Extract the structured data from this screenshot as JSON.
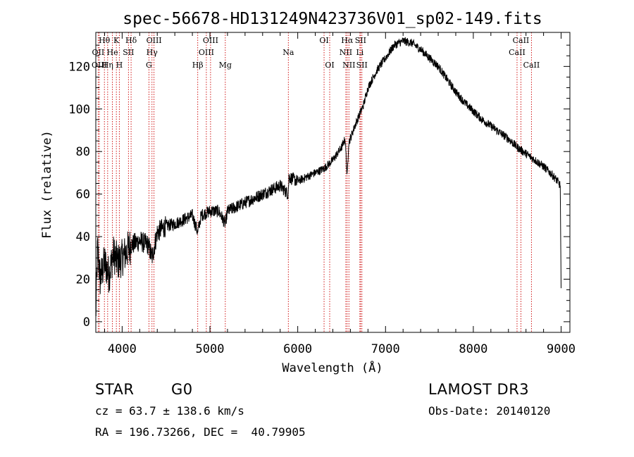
{
  "chart_data": {
    "type": "line",
    "title": "spec-56678-HD131249N423736V01_sp02-149.fits",
    "xlabel": "Wavelength (Å)",
    "ylabel": "Flux (relative)",
    "xlim": [
      3700,
      9100
    ],
    "ylim": [
      -5,
      136
    ],
    "xticks": [
      4000,
      5000,
      6000,
      7000,
      8000,
      9000
    ],
    "yticks": [
      0,
      20,
      40,
      60,
      80,
      100,
      120
    ],
    "series": [
      {
        "name": "flux",
        "anchors": [
          [
            3700,
            2
          ],
          [
            3720,
            35
          ],
          [
            3750,
            20
          ],
          [
            3800,
            28
          ],
          [
            3850,
            22
          ],
          [
            3900,
            32
          ],
          [
            3950,
            28
          ],
          [
            4000,
            30
          ],
          [
            4050,
            33
          ],
          [
            4100,
            36
          ],
          [
            4200,
            38
          ],
          [
            4300,
            36
          ],
          [
            4340,
            30
          ],
          [
            4400,
            42
          ],
          [
            4500,
            45
          ],
          [
            4600,
            46
          ],
          [
            4700,
            48
          ],
          [
            4800,
            50
          ],
          [
            4861,
            42
          ],
          [
            4900,
            50
          ],
          [
            5000,
            52
          ],
          [
            5100,
            52
          ],
          [
            5175,
            46
          ],
          [
            5200,
            52
          ],
          [
            5300,
            54
          ],
          [
            5400,
            56
          ],
          [
            5500,
            58
          ],
          [
            5600,
            60
          ],
          [
            5700,
            62
          ],
          [
            5800,
            64
          ],
          [
            5890,
            60
          ],
          [
            5900,
            68
          ],
          [
            6000,
            66
          ],
          [
            6100,
            68
          ],
          [
            6200,
            70
          ],
          [
            6300,
            72
          ],
          [
            6400,
            76
          ],
          [
            6500,
            82
          ],
          [
            6540,
            86
          ],
          [
            6563,
            68
          ],
          [
            6580,
            84
          ],
          [
            6650,
            92
          ],
          [
            6750,
            102
          ],
          [
            6800,
            110
          ],
          [
            6900,
            118
          ],
          [
            7000,
            124
          ],
          [
            7100,
            130
          ],
          [
            7200,
            132
          ],
          [
            7300,
            131
          ],
          [
            7400,
            128
          ],
          [
            7500,
            124
          ],
          [
            7600,
            120
          ],
          [
            7700,
            114
          ],
          [
            7800,
            108
          ],
          [
            7900,
            103
          ],
          [
            8000,
            99
          ],
          [
            8100,
            95
          ],
          [
            8200,
            92
          ],
          [
            8300,
            89
          ],
          [
            8400,
            86
          ],
          [
            8500,
            82
          ],
          [
            8600,
            79
          ],
          [
            8700,
            76
          ],
          [
            8800,
            73
          ],
          [
            8900,
            69
          ],
          [
            8960,
            66
          ],
          [
            8990,
            64
          ],
          [
            9000,
            15
          ]
        ]
      }
    ],
    "lines": [
      {
        "label": "Hθ",
        "wl": 3798,
        "row": 1
      },
      {
        "label": "OII",
        "wl": 3727,
        "row": 2
      },
      {
        "label": "OIII",
        "wl": 3740,
        "row": 3
      },
      {
        "label": "Hη",
        "wl": 3835,
        "row": 3
      },
      {
        "label": "He",
        "wl": 3889,
        "row": 2
      },
      {
        "label": "K",
        "wl": 3934,
        "row": 1
      },
      {
        "label": "H",
        "wl": 3968,
        "row": 3
      },
      {
        "label": "SII",
        "wl": 4072,
        "row": 2
      },
      {
        "label": "Hδ",
        "wl": 4102,
        "row": 1
      },
      {
        "label": "OIII",
        "wl": 4363,
        "row": 1
      },
      {
        "label": "Hγ",
        "wl": 4340,
        "row": 2
      },
      {
        "label": "G",
        "wl": 4305,
        "row": 3
      },
      {
        "label": "Hβ",
        "wl": 4861,
        "row": 3
      },
      {
        "label": "OIII",
        "wl": 5007,
        "row": 1
      },
      {
        "label": "OIII",
        "wl": 4959,
        "row": 2
      },
      {
        "label": "Mg",
        "wl": 5175,
        "row": 3
      },
      {
        "label": "Na",
        "wl": 5893,
        "row": 2
      },
      {
        "label": "OI",
        "wl": 6300,
        "row": 1
      },
      {
        "label": "OI",
        "wl": 6364,
        "row": 3
      },
      {
        "label": "Hα",
        "wl": 6563,
        "row": 1
      },
      {
        "label": "NII",
        "wl": 6548,
        "row": 2
      },
      {
        "label": "NII",
        "wl": 6583,
        "row": 3
      },
      {
        "label": "SII",
        "wl": 6716,
        "row": 1
      },
      {
        "label": "Li",
        "wl": 6708,
        "row": 2
      },
      {
        "label": "SII",
        "wl": 6731,
        "row": 3
      },
      {
        "label": "CaII",
        "wl": 8542,
        "row": 1
      },
      {
        "label": "CaII",
        "wl": 8498,
        "row": 2
      },
      {
        "label": "CaII",
        "wl": 8662,
        "row": 3
      }
    ],
    "colors": {
      "spectrum": "#000000",
      "lines": "#cc0000"
    }
  },
  "info": {
    "class": "STAR",
    "subclass": "G0",
    "survey": "LAMOST DR3",
    "cz": "cz = 63.7 ± 138.6 km/s",
    "obs_date": "Obs-Date: 20140120",
    "coords": "RA = 196.73266, DEC =  40.79905"
  }
}
